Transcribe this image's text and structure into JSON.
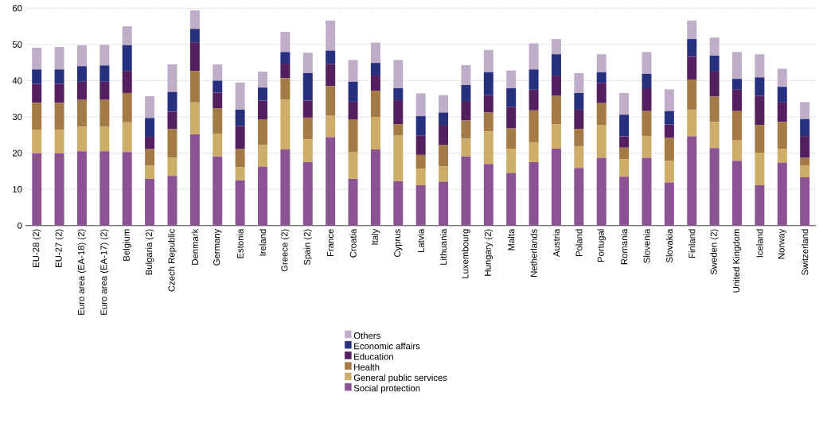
{
  "chart_data": {
    "type": "bar",
    "stacked": true,
    "grid": "y",
    "legend": "bottom",
    "categories": [
      "EU-28 (2)",
      "EU-27 (2)",
      "Euro area (EA-18) (2)",
      "Euro area (EA-17) (2)",
      "Belgium",
      "Bulgaria (2)",
      "Czech Republic",
      "Denmark",
      "Germany",
      "Estonia",
      "Ireland",
      "Greece (2)",
      "Spain (2)",
      "France",
      "Croatia",
      "Italy",
      "Cyprus",
      "Latvia",
      "Lithuania",
      "Luxembourg",
      "Hungary (2)",
      "Malta",
      "Netherlands",
      "Austria",
      "Poland",
      "Portugal",
      "Romania",
      "Slovenia",
      "Slovakia",
      "Finland",
      "Sweden (2)",
      "United Kingdom",
      "Iceland",
      "Norway",
      "Switzerland"
    ],
    "ylim": [
      0,
      60
    ],
    "yticks": [
      0,
      10,
      20,
      30,
      40,
      50,
      60
    ],
    "series": [
      {
        "name": "Social protection",
        "color": "#8b5394",
        "values": [
          19.9,
          19.9,
          20.5,
          20.5,
          20.3,
          12.9,
          13.7,
          25.2,
          19.1,
          12.5,
          16.3,
          21.0,
          17.5,
          24.4,
          12.9,
          21.0,
          12.3,
          11.1,
          12.1,
          19.1,
          17.0,
          14.5,
          17.5,
          21.2,
          15.9,
          18.7,
          13.5,
          18.7,
          11.9,
          24.6,
          21.4,
          17.9,
          11.1,
          17.4,
          13.3
        ]
      },
      {
        "name": "General public services",
        "color": "#cdad67",
        "values": [
          6.6,
          6.6,
          6.8,
          6.8,
          8.2,
          3.6,
          5.0,
          8.8,
          6.3,
          3.6,
          5.9,
          13.8,
          6.3,
          5.9,
          7.3,
          9.0,
          12.5,
          4.6,
          4.2,
          4.9,
          9.0,
          6.7,
          5.5,
          6.8,
          6.0,
          9.1,
          4.8,
          5.9,
          6.0,
          7.4,
          7.2,
          5.6,
          9.0,
          3.8,
          3.2
        ]
      },
      {
        "name": "Health",
        "color": "#a47b47",
        "values": [
          7.4,
          7.4,
          7.4,
          7.4,
          8.1,
          4.6,
          7.9,
          8.7,
          7.0,
          5.0,
          7.0,
          5.9,
          6.0,
          8.2,
          9.0,
          7.2,
          3.2,
          3.8,
          5.9,
          5.0,
          5.2,
          5.6,
          8.8,
          7.8,
          4.7,
          6.0,
          3.2,
          7.0,
          6.3,
          8.3,
          7.0,
          8.1,
          7.7,
          7.4,
          2.2
        ]
      },
      {
        "name": "Education",
        "color": "#541f5e",
        "values": [
          5.2,
          5.2,
          5.0,
          5.0,
          6.1,
          3.4,
          4.8,
          7.9,
          4.3,
          6.4,
          5.3,
          4.0,
          4.7,
          6.1,
          5.0,
          4.2,
          6.6,
          5.3,
          5.6,
          5.4,
          4.8,
          6.0,
          5.7,
          5.6,
          5.4,
          5.6,
          3.1,
          6.3,
          3.7,
          6.3,
          6.9,
          5.9,
          8.0,
          5.4,
          6.0
        ]
      },
      {
        "name": "Economic affairs",
        "color": "#27307f",
        "values": [
          4.0,
          4.0,
          4.3,
          4.5,
          7.1,
          5.2,
          5.5,
          3.7,
          3.3,
          4.5,
          3.6,
          3.2,
          7.6,
          3.7,
          5.5,
          3.5,
          3.3,
          5.4,
          3.4,
          4.4,
          6.3,
          5.1,
          5.6,
          5.9,
          4.6,
          2.9,
          6.0,
          4.0,
          3.7,
          4.9,
          4.4,
          3.0,
          5.1,
          4.3,
          4.7
        ]
      },
      {
        "name": "Others",
        "color": "#c0aec9",
        "values": [
          6.0,
          6.2,
          5.8,
          5.7,
          5.2,
          6.0,
          7.6,
          5.1,
          4.5,
          7.5,
          4.4,
          5.6,
          5.6,
          8.3,
          6.0,
          5.6,
          7.8,
          6.3,
          4.8,
          5.5,
          6.2,
          4.9,
          7.2,
          4.2,
          5.5,
          5.0,
          6.0,
          6.0,
          6.0,
          5.1,
          5.0,
          7.4,
          6.4,
          5.0,
          4.7
        ]
      }
    ]
  }
}
